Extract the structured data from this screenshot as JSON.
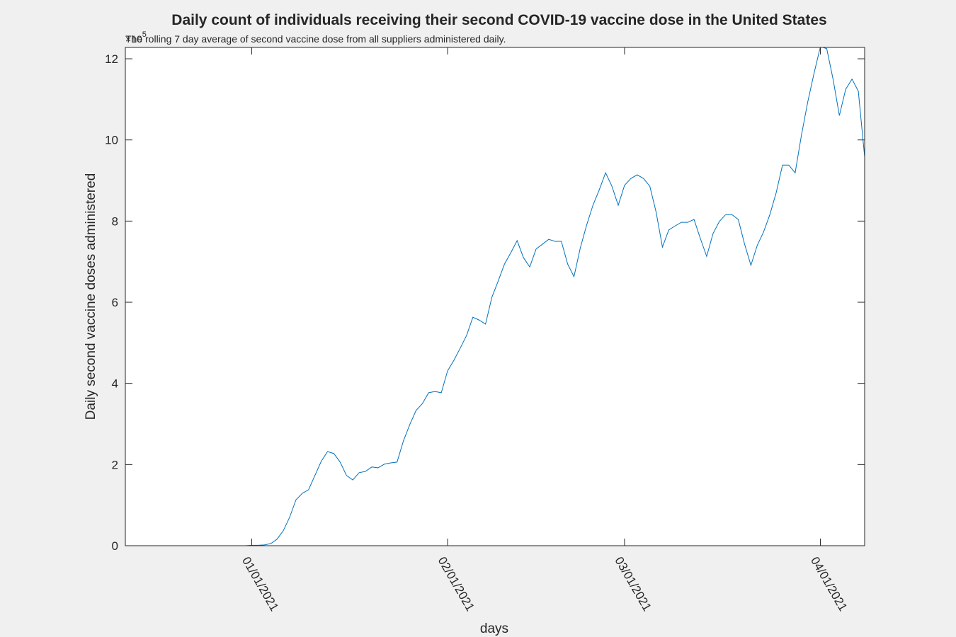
{
  "chart_data": {
    "type": "line",
    "title": "Daily count of individuals receiving their second COVID-19 vaccine dose in the United States",
    "subtitle": "The rolling 7 day average of second vaccine dose from all suppliers administered daily.",
    "x_label": "days",
    "y_label": "Daily second vaccine doses administered",
    "y_exponent_label": "×10",
    "y_exponent": 5,
    "color": "#0072bd",
    "x": [
      "12/12/2020",
      "12/13/2020",
      "12/14/2020",
      "12/15/2020",
      "12/16/2020",
      "12/17/2020",
      "12/18/2020",
      "12/19/2020",
      "12/20/2020",
      "12/21/2020",
      "12/22/2020",
      "12/23/2020",
      "12/24/2020",
      "12/25/2020",
      "12/26/2020",
      "12/27/2020",
      "12/28/2020",
      "12/29/2020",
      "12/30/2020",
      "12/31/2020",
      "01/01/2021",
      "01/02/2021",
      "01/03/2021",
      "01/04/2021",
      "01/05/2021",
      "01/06/2021",
      "01/07/2021",
      "01/08/2021",
      "01/09/2021",
      "01/10/2021",
      "01/11/2021",
      "01/12/2021",
      "01/13/2021",
      "01/14/2021",
      "01/15/2021",
      "01/16/2021",
      "01/17/2021",
      "01/18/2021",
      "01/19/2021",
      "01/20/2021",
      "01/21/2021",
      "01/22/2021",
      "01/23/2021",
      "01/24/2021",
      "01/25/2021",
      "01/26/2021",
      "01/27/2021",
      "01/28/2021",
      "01/29/2021",
      "01/30/2021",
      "01/31/2021",
      "02/01/2021",
      "02/02/2021",
      "02/03/2021",
      "02/04/2021",
      "02/05/2021",
      "02/06/2021",
      "02/07/2021",
      "02/08/2021",
      "02/09/2021",
      "02/10/2021",
      "02/11/2021",
      "02/12/2021",
      "02/13/2021",
      "02/14/2021",
      "02/15/2021",
      "02/16/2021",
      "02/17/2021",
      "02/18/2021",
      "02/19/2021",
      "02/20/2021",
      "02/21/2021",
      "02/22/2021",
      "02/23/2021",
      "02/24/2021",
      "02/25/2021",
      "02/26/2021",
      "02/27/2021",
      "02/28/2021",
      "03/01/2021",
      "03/02/2021",
      "03/03/2021",
      "03/04/2021",
      "03/05/2021",
      "03/06/2021",
      "03/07/2021",
      "03/08/2021",
      "03/09/2021",
      "03/10/2021",
      "03/11/2021",
      "03/12/2021",
      "03/13/2021",
      "03/14/2021",
      "03/15/2021",
      "03/16/2021",
      "03/17/2021",
      "03/18/2021",
      "03/19/2021",
      "03/20/2021",
      "03/21/2021",
      "03/22/2021",
      "03/23/2021",
      "03/24/2021",
      "03/25/2021",
      "03/26/2021",
      "03/27/2021",
      "03/28/2021",
      "03/29/2021",
      "03/30/2021",
      "03/31/2021",
      "04/01/2021",
      "04/02/2021",
      "04/03/2021",
      "04/04/2021",
      "04/05/2021",
      "04/06/2021",
      "04/07/2021",
      "04/08/2021"
    ],
    "values": [
      0,
      0,
      0,
      0,
      0,
      0,
      0,
      0,
      0,
      0,
      0,
      0,
      0,
      0,
      0,
      0,
      0,
      0,
      0,
      0,
      0.01,
      0.01,
      0.02,
      0.05,
      0.16,
      0.37,
      0.7,
      1.13,
      1.29,
      1.38,
      1.73,
      2.08,
      2.32,
      2.27,
      2.06,
      1.73,
      1.62,
      1.8,
      1.83,
      1.94,
      1.92,
      2.01,
      2.04,
      2.06,
      2.58,
      2.98,
      3.33,
      3.5,
      3.77,
      3.8,
      3.77,
      4.31,
      4.57,
      4.87,
      5.18,
      5.63,
      5.56,
      5.46,
      6.12,
      6.52,
      6.94,
      7.22,
      7.52,
      7.1,
      6.87,
      7.31,
      7.43,
      7.55,
      7.5,
      7.5,
      6.94,
      6.63,
      7.34,
      7.9,
      8.39,
      8.77,
      9.19,
      8.86,
      8.39,
      8.88,
      9.05,
      9.14,
      9.05,
      8.86,
      8.22,
      7.36,
      7.78,
      7.88,
      7.97,
      7.97,
      8.04,
      7.57,
      7.13,
      7.69,
      7.99,
      8.16,
      8.16,
      8.04,
      7.43,
      6.91,
      7.4,
      7.73,
      8.16,
      8.7,
      9.38,
      9.38,
      9.19,
      10.12,
      10.94,
      11.65,
      12.3,
      12.25,
      11.5,
      10.6,
      11.25,
      11.5,
      11.2,
      9.58
    ],
    "xlim": [
      "12/12/2020",
      "04/08/2021"
    ],
    "xticks": [
      "01/01/2021",
      "02/01/2021",
      "03/01/2021",
      "04/01/2021"
    ],
    "ylim": [
      0,
      12.28
    ],
    "yticks": [
      0,
      2,
      4,
      6,
      8,
      10,
      12
    ]
  }
}
